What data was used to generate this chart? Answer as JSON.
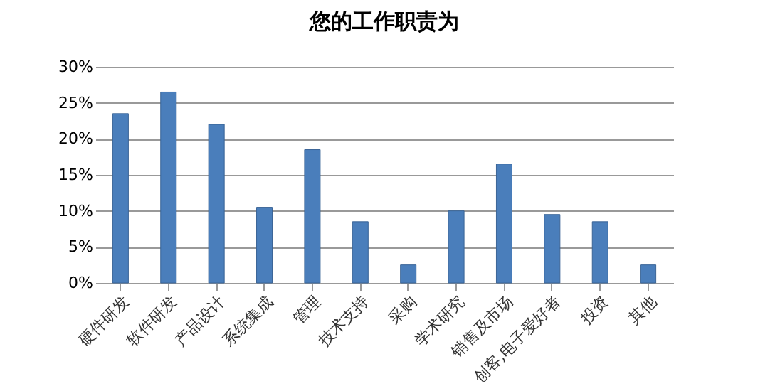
{
  "chart_data": {
    "type": "bar",
    "title": "您的工作职责为",
    "categories": [
      "硬件研发",
      "软件研发",
      "产品设计",
      "系统集成",
      "管理",
      "技术支持",
      "采购",
      "学术研究",
      "销售及市场",
      "创客,电子爱好者",
      "投资",
      "其他"
    ],
    "values": [
      23.5,
      26.5,
      22,
      10.5,
      18.5,
      8.5,
      2.5,
      10,
      16.5,
      9.5,
      8.5,
      2.5
    ],
    "color": "#4a7ebb",
    "ylim": [
      0,
      30
    ],
    "yticks": [
      {
        "value": 0,
        "label": "0%"
      },
      {
        "value": 5,
        "label": "5%"
      },
      {
        "value": 10,
        "label": "10%"
      },
      {
        "value": 15,
        "label": "15%"
      },
      {
        "value": 20,
        "label": "20%"
      },
      {
        "value": 25,
        "label": "25%"
      },
      {
        "value": 30,
        "label": "30%"
      }
    ],
    "grid": "y"
  }
}
